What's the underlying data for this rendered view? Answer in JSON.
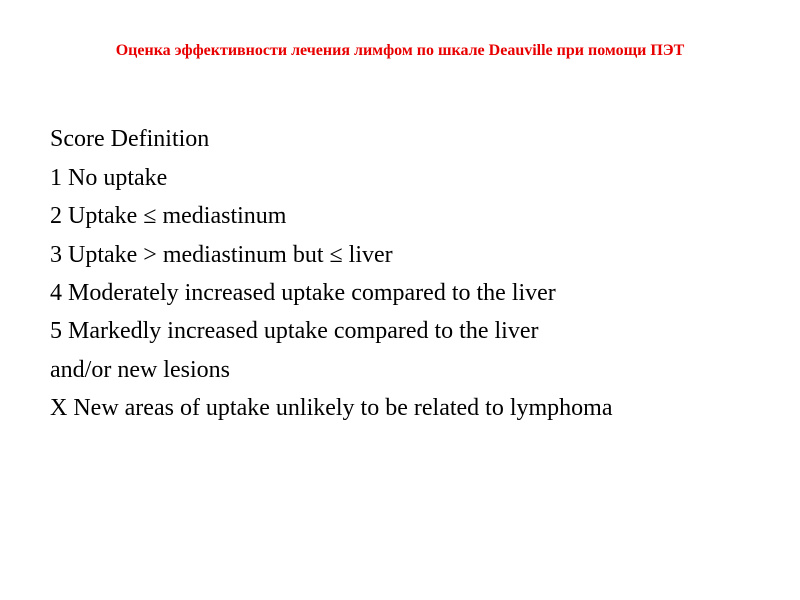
{
  "slide": {
    "title": "Оценка эффективности лечения лимфом по шкале Deauville при помощи ПЭТ",
    "title_color": "#e80000",
    "title_fontsize": 16,
    "title_fontweight": "bold",
    "body_color": "#000000",
    "body_fontsize": 24,
    "background_color": "#ffffff",
    "lines": [
      "Score Definition",
      "1 No uptake",
      "2 Uptake ≤ mediastinum",
      "3 Uptake > mediastinum but ≤ liver",
      "4 Moderately increased uptake compared to the liver",
      "5 Markedly increased uptake compared to the liver",
      "and/or new lesions",
      "X New areas of uptake unlikely to be related to lymphoma"
    ]
  }
}
